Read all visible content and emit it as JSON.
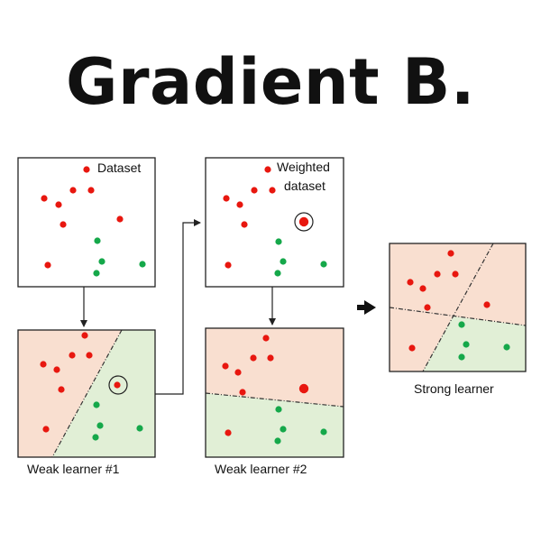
{
  "title": "Gradient B.",
  "colors": {
    "red_point": "#e8170f",
    "green_point": "#15a84a",
    "red_region": "#f9dfd0",
    "green_region": "#e1efd6",
    "frame": "#222222",
    "boundary": "#333333"
  },
  "panels": {
    "dataset": {
      "label": "Dataset"
    },
    "weighted": {
      "label_line1": "Weighted",
      "label_line2": "dataset"
    },
    "weak1": {
      "caption": "Weak learner #1"
    },
    "weak2": {
      "caption": "Weak learner #2"
    },
    "strong": {
      "caption": "Strong learner"
    }
  }
}
